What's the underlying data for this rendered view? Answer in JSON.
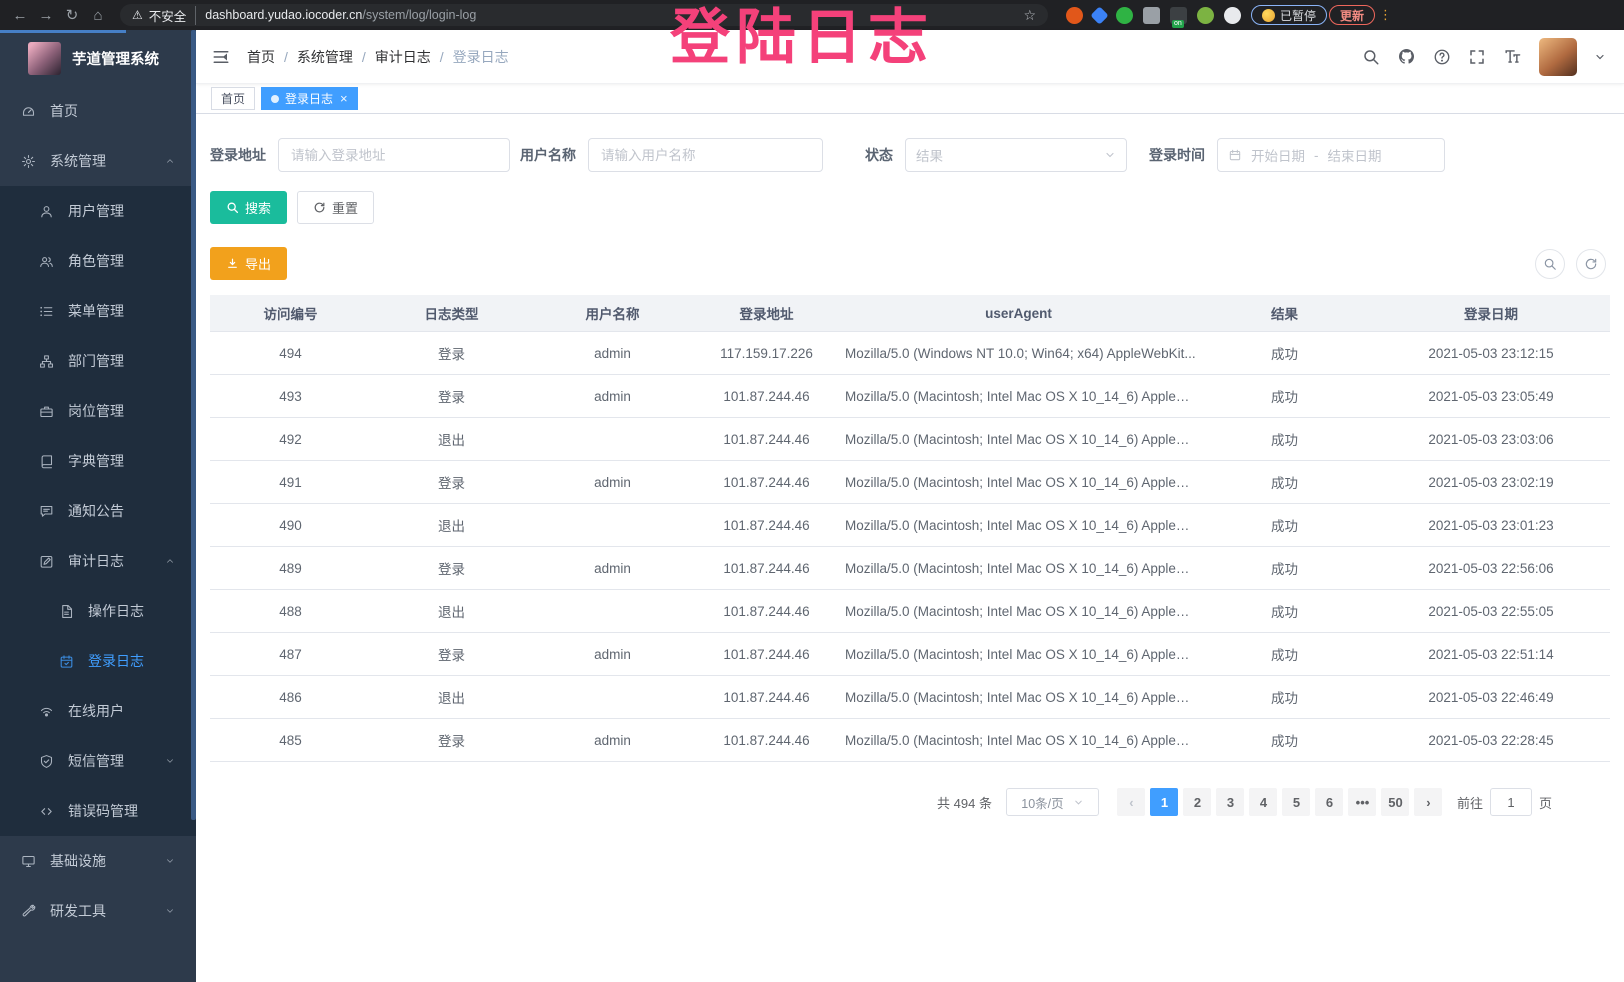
{
  "browser": {
    "security_label": "不安全",
    "url_host": "dashboard.yudao.iocoder.cn",
    "url_path": "/system/log/login-log",
    "paused_label": "已暂停",
    "update_label": "更新",
    "extensions": [
      {
        "shape": "circle",
        "color": "#e1571a",
        "badge": ""
      },
      {
        "shape": "diamond",
        "color": "#3b82f6",
        "badge": ""
      },
      {
        "shape": "circle",
        "color": "#2fb344",
        "badge": ""
      },
      {
        "shape": "grid",
        "color": "#9aa0a6",
        "badge": ""
      },
      {
        "shape": "grid",
        "color": "#3c4043",
        "badge": "on"
      },
      {
        "shape": "circle",
        "color": "#7cb342",
        "badge": ""
      },
      {
        "shape": "circle",
        "color": "#e8eaed",
        "badge": ""
      }
    ]
  },
  "sidebar": {
    "title": "芋道管理系统",
    "items": [
      {
        "key": "home",
        "label": "首页",
        "icon": "dashboard-icon",
        "level": 0,
        "active": false,
        "arrow": ""
      },
      {
        "key": "system",
        "label": "系统管理",
        "icon": "gear-icon",
        "level": 0,
        "active": false,
        "arrow": "up"
      },
      {
        "key": "user",
        "label": "用户管理",
        "icon": "user-icon",
        "level": 1,
        "active": false,
        "arrow": ""
      },
      {
        "key": "role",
        "label": "角色管理",
        "icon": "roles-icon",
        "level": 1,
        "active": false,
        "arrow": ""
      },
      {
        "key": "menu",
        "label": "菜单管理",
        "icon": "menu-icon",
        "level": 1,
        "active": false,
        "arrow": ""
      },
      {
        "key": "dept",
        "label": "部门管理",
        "icon": "tree-icon",
        "level": 1,
        "active": false,
        "arrow": ""
      },
      {
        "key": "post",
        "label": "岗位管理",
        "icon": "post-icon",
        "level": 1,
        "active": false,
        "arrow": ""
      },
      {
        "key": "dict",
        "label": "字典管理",
        "icon": "dict-icon",
        "level": 1,
        "active": false,
        "arrow": ""
      },
      {
        "key": "notice",
        "label": "通知公告",
        "icon": "message-icon",
        "level": 1,
        "active": false,
        "arrow": ""
      },
      {
        "key": "audit-log",
        "label": "审计日志",
        "icon": "audit-icon",
        "level": 1,
        "active": false,
        "arrow": "up"
      },
      {
        "key": "operate-log",
        "label": "操作日志",
        "icon": "doc-icon",
        "level": 2,
        "active": false,
        "arrow": ""
      },
      {
        "key": "login-log",
        "label": "登录日志",
        "icon": "loginlog-icon",
        "level": 2,
        "active": true,
        "arrow": ""
      },
      {
        "key": "online-user",
        "label": "在线用户",
        "icon": "online-icon",
        "level": 1,
        "active": false,
        "arrow": ""
      },
      {
        "key": "sms",
        "label": "短信管理",
        "icon": "shield-icon",
        "level": 1,
        "active": false,
        "arrow": "down"
      },
      {
        "key": "error-code",
        "label": "错误码管理",
        "icon": "code-icon",
        "level": 1,
        "active": false,
        "arrow": ""
      },
      {
        "key": "infra",
        "label": "基础设施",
        "icon": "monitor-icon",
        "level": 0,
        "active": false,
        "arrow": "down"
      },
      {
        "key": "dev-tools",
        "label": "研发工具",
        "icon": "tools-icon",
        "level": 0,
        "active": false,
        "arrow": "down"
      }
    ]
  },
  "header": {
    "breadcrumb": [
      "首页",
      "系统管理",
      "审计日志",
      "登录日志"
    ],
    "separator": "/"
  },
  "tags": [
    {
      "label": "首页",
      "active": false
    },
    {
      "label": "登录日志",
      "active": true
    }
  ],
  "annotation": {
    "text": "登陆日志",
    "color": "#f4417a"
  },
  "filters": {
    "login_address": {
      "label": "登录地址",
      "placeholder": "请输入登录地址"
    },
    "username": {
      "label": "用户名称",
      "placeholder": "请输入用户名称"
    },
    "status": {
      "label": "状态",
      "placeholder": "结果"
    },
    "login_time": {
      "label": "登录时间",
      "start_placeholder": "开始日期",
      "separator": "-",
      "end_placeholder": "结束日期"
    }
  },
  "actions": {
    "search_label": "搜索",
    "reset_label": "重置",
    "export_label": "导出"
  },
  "table": {
    "columns": [
      "访问编号",
      "日志类型",
      "用户名称",
      "登录地址",
      "userAgent",
      "结果",
      "登录日期"
    ],
    "rows": [
      [
        "494",
        "登录",
        "admin",
        "117.159.17.226",
        "Mozilla/5.0 (Windows NT 10.0; Win64; x64) AppleWebKit...",
        "成功",
        "2021-05-03 23:12:15"
      ],
      [
        "493",
        "登录",
        "admin",
        "101.87.244.46",
        "Mozilla/5.0 (Macintosh; Intel Mac OS X 10_14_6) AppleWe...",
        "成功",
        "2021-05-03 23:05:49"
      ],
      [
        "492",
        "退出",
        "",
        "101.87.244.46",
        "Mozilla/5.0 (Macintosh; Intel Mac OS X 10_14_6) AppleWe...",
        "成功",
        "2021-05-03 23:03:06"
      ],
      [
        "491",
        "登录",
        "admin",
        "101.87.244.46",
        "Mozilla/5.0 (Macintosh; Intel Mac OS X 10_14_6) AppleWe...",
        "成功",
        "2021-05-03 23:02:19"
      ],
      [
        "490",
        "退出",
        "",
        "101.87.244.46",
        "Mozilla/5.0 (Macintosh; Intel Mac OS X 10_14_6) AppleWe...",
        "成功",
        "2021-05-03 23:01:23"
      ],
      [
        "489",
        "登录",
        "admin",
        "101.87.244.46",
        "Mozilla/5.0 (Macintosh; Intel Mac OS X 10_14_6) AppleWe...",
        "成功",
        "2021-05-03 22:56:06"
      ],
      [
        "488",
        "退出",
        "",
        "101.87.244.46",
        "Mozilla/5.0 (Macintosh; Intel Mac OS X 10_14_6) AppleWe...",
        "成功",
        "2021-05-03 22:55:05"
      ],
      [
        "487",
        "登录",
        "admin",
        "101.87.244.46",
        "Mozilla/5.0 (Macintosh; Intel Mac OS X 10_14_6) AppleWe...",
        "成功",
        "2021-05-03 22:51:14"
      ],
      [
        "486",
        "退出",
        "",
        "101.87.244.46",
        "Mozilla/5.0 (Macintosh; Intel Mac OS X 10_14_6) AppleWe...",
        "成功",
        "2021-05-03 22:46:49"
      ],
      [
        "485",
        "登录",
        "admin",
        "101.87.244.46",
        "Mozilla/5.0 (Macintosh; Intel Mac OS X 10_14_6) AppleWe...",
        "成功",
        "2021-05-03 22:28:45"
      ]
    ]
  },
  "pagination": {
    "total": "共 494 条",
    "page_size": "10条/页",
    "pages": [
      "1",
      "2",
      "3",
      "4",
      "5",
      "6",
      "•••",
      "50"
    ],
    "active": "1",
    "prev": "‹",
    "next": "›",
    "goto_label": "前往",
    "goto_value": "1",
    "unit": "页"
  },
  "colors": {
    "accent": "#409eff",
    "sidebar_bg": "#2d3a4b",
    "submenu_bg": "#1f2d3d",
    "search_button": "#1abc9c",
    "export_button": "#f2a11c",
    "annotation": "#f4417a"
  }
}
